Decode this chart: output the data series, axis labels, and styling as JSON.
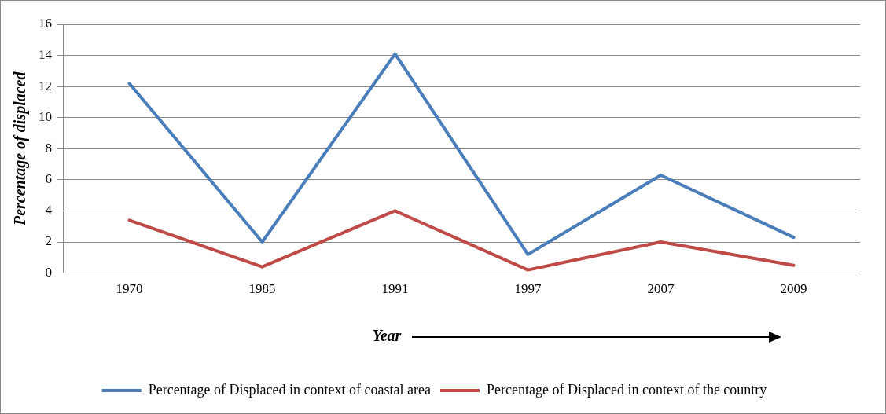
{
  "chart_data": {
    "type": "line",
    "xlabel": "Year",
    "ylabel": "Percentage of displaced",
    "categories": [
      "1970",
      "1985",
      "1991",
      "1997",
      "2007",
      "2009"
    ],
    "series": [
      {
        "name": "Percentage of Displaced in context of coastal area",
        "color": "#4a7ebb",
        "values": [
          12.2,
          2.0,
          14.1,
          1.2,
          6.3,
          2.3
        ]
      },
      {
        "name": "Percentage of Displaced in context of the country",
        "color": "#be4b48",
        "values": [
          3.4,
          0.4,
          4.0,
          0.2,
          2.0,
          0.5
        ]
      }
    ],
    "ylim": [
      0,
      16
    ],
    "yticks": [
      0,
      2,
      4,
      6,
      8,
      10,
      12,
      14,
      16
    ],
    "grid": "y",
    "legend": "bottom",
    "marker": "none",
    "line_style": "solid"
  }
}
